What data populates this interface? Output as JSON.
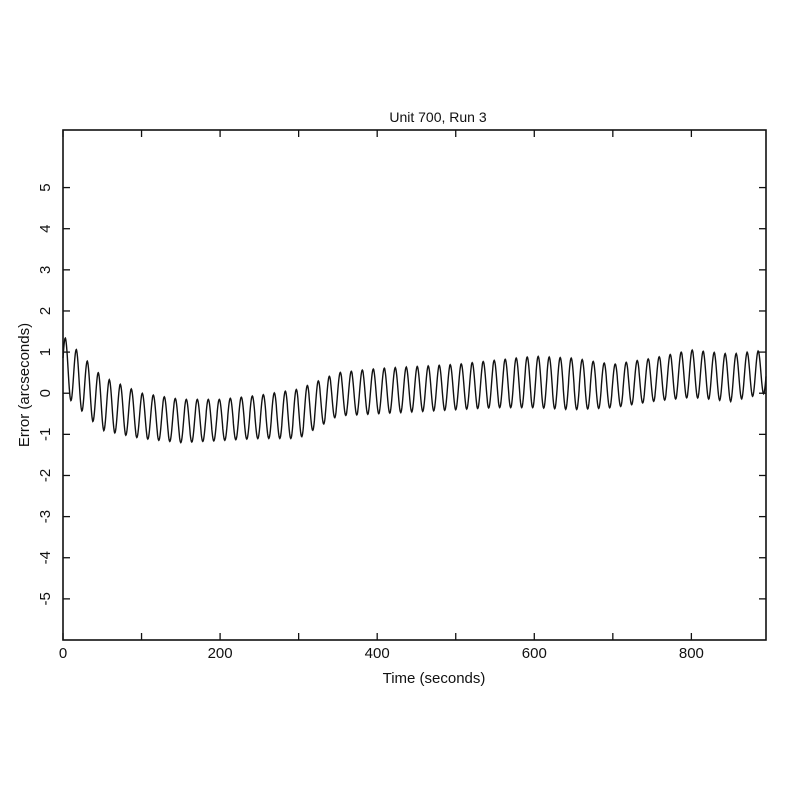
{
  "chart_data": {
    "type": "line",
    "title": "Unit 700, Run 3",
    "xlabel": "Time (seconds)",
    "ylabel": "Error (arcseconds)",
    "xlim": [
      0,
      895
    ],
    "ylim": [
      -6,
      6.4
    ],
    "x_ticks": [
      0,
      100,
      200,
      300,
      400,
      500,
      600,
      700,
      800
    ],
    "x_tick_labels": [
      "0",
      "",
      "200",
      "",
      "400",
      "",
      "600",
      "",
      "800"
    ],
    "y_ticks": [
      -5,
      -4,
      -3,
      -2,
      -1,
      0,
      1,
      2,
      3,
      4,
      5
    ],
    "y_tick_labels": [
      "-5",
      "-4",
      "-3",
      "-2",
      "-1",
      "0",
      "1",
      "2",
      "3",
      "4",
      "5"
    ],
    "grid": false,
    "line_color": "#111111",
    "oscillation_period_seconds": 14,
    "envelope": {
      "t": [
        0,
        50,
        100,
        150,
        200,
        250,
        300,
        350,
        400,
        450,
        500,
        550,
        600,
        650,
        700,
        750,
        800,
        850,
        895
      ],
      "upper": [
        1.4,
        0.4,
        0.0,
        -0.15,
        -0.15,
        -0.05,
        0.1,
        0.5,
        0.6,
        0.65,
        0.7,
        0.8,
        0.9,
        0.85,
        0.7,
        0.85,
        1.05,
        0.95,
        1.05
      ],
      "lower": [
        0.0,
        -0.9,
        -1.1,
        -1.2,
        -1.15,
        -1.1,
        -1.1,
        -0.55,
        -0.5,
        -0.45,
        -0.4,
        -0.35,
        -0.35,
        -0.4,
        -0.35,
        -0.2,
        -0.1,
        -0.2,
        0.0
      ]
    }
  }
}
